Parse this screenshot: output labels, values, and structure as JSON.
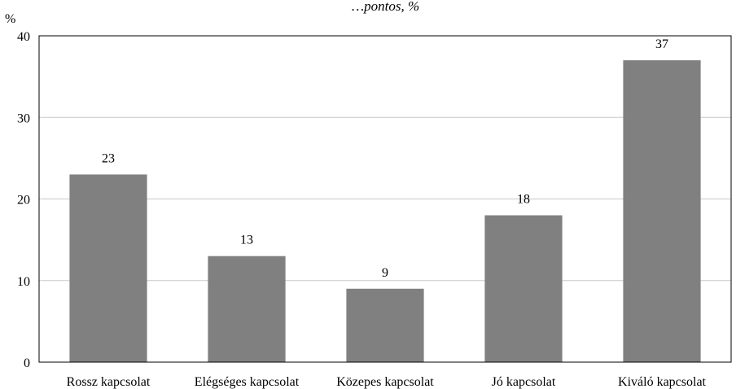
{
  "chart_data": {
    "type": "bar",
    "title": "…pontos, %",
    "ylabel": "%",
    "xlabel": "",
    "categories": [
      "Rossz kapcsolat",
      "Elégséges kapcsolat",
      "Közepes kapcsolat",
      "Jó kapcsolat",
      "Kiváló kapcsolat"
    ],
    "values": [
      23,
      13,
      9,
      18,
      37
    ],
    "ylim": [
      0,
      40
    ],
    "yticks": [
      "0",
      "10",
      "20",
      "30",
      "40"
    ],
    "grid": true,
    "legend": "none",
    "bar_color": "#808080",
    "grid_color": "#c8c8c8"
  }
}
